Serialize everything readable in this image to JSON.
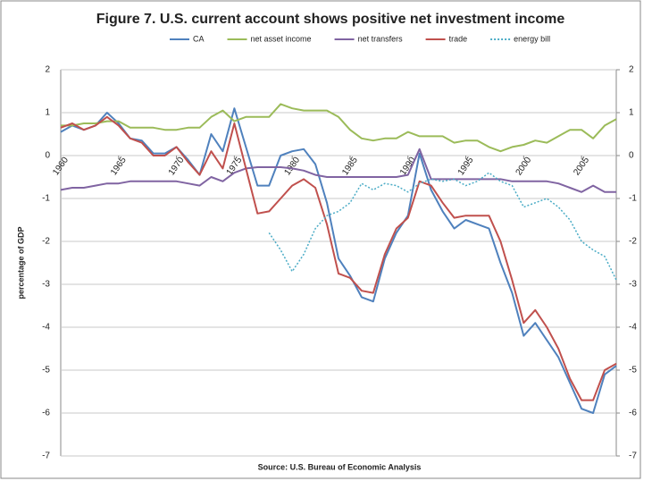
{
  "chart_data": {
    "type": "line",
    "title": "Figure 7. U.S. current account shows positive net investment income",
    "y_label": "percentage of GDP",
    "source": "Source: U.S. Bureau of Economic Analysis",
    "x": [
      1960,
      1961,
      1962,
      1963,
      1964,
      1965,
      1966,
      1967,
      1968,
      1969,
      1970,
      1971,
      1972,
      1973,
      1974,
      1975,
      1976,
      1977,
      1978,
      1979,
      1980,
      1981,
      1982,
      1983,
      1984,
      1985,
      1986,
      1987,
      1988,
      1989,
      1990,
      1991,
      1992,
      1993,
      1994,
      1995,
      1996,
      1997,
      1998,
      1999,
      2000,
      2001,
      2002,
      2003,
      2004,
      2005,
      2006,
      2007,
      2008
    ],
    "xlim": [
      1960,
      2008
    ],
    "xticks": [
      1960,
      1965,
      1970,
      1975,
      1980,
      1985,
      1990,
      1995,
      2000,
      2005
    ],
    "ylim": [
      -7,
      2
    ],
    "yticks": [
      -7,
      -6,
      -5,
      -4,
      -3,
      -2,
      -1,
      0,
      1,
      2
    ],
    "y2lim": [
      -7,
      2
    ],
    "y2ticks": [
      -7,
      -6,
      -5,
      -4,
      -3,
      -2,
      -1,
      0,
      1,
      2
    ],
    "grid": true,
    "legend": "top",
    "series": [
      {
        "name": "CA",
        "color": "#4f81bd",
        "values": [
          0.55,
          0.7,
          0.6,
          0.7,
          1.0,
          0.75,
          0.4,
          0.35,
          0.05,
          0.05,
          0.2,
          -0.1,
          -0.45,
          0.5,
          0.1,
          1.1,
          0.2,
          -0.7,
          -0.7,
          0.0,
          0.1,
          0.15,
          -0.2,
          -1.1,
          -2.4,
          -2.8,
          -3.3,
          -3.4,
          -2.4,
          -1.8,
          -1.4,
          0.05,
          -0.8,
          -1.3,
          -1.7,
          -1.5,
          -1.6,
          -1.7,
          -2.5,
          -3.2,
          -4.2,
          -3.9,
          -4.3,
          -4.7,
          -5.3,
          -5.9,
          -6.0,
          -5.1,
          -4.9
        ]
      },
      {
        "name": "net asset income",
        "color": "#9bbb59",
        "values": [
          0.7,
          0.7,
          0.75,
          0.75,
          0.8,
          0.8,
          0.65,
          0.65,
          0.65,
          0.6,
          0.6,
          0.65,
          0.65,
          0.9,
          1.05,
          0.8,
          0.9,
          0.9,
          0.9,
          1.2,
          1.1,
          1.05,
          1.05,
          1.05,
          0.9,
          0.6,
          0.4,
          0.35,
          0.4,
          0.4,
          0.55,
          0.45,
          0.45,
          0.45,
          0.3,
          0.35,
          0.35,
          0.2,
          0.1,
          0.2,
          0.25,
          0.35,
          0.3,
          0.45,
          0.6,
          0.6,
          0.4,
          0.7,
          0.85
        ]
      },
      {
        "name": "net transfers",
        "color": "#8064a2",
        "values": [
          -0.8,
          -0.75,
          -0.75,
          -0.7,
          -0.65,
          -0.65,
          -0.6,
          -0.6,
          -0.6,
          -0.6,
          -0.6,
          -0.65,
          -0.7,
          -0.5,
          -0.6,
          -0.4,
          -0.3,
          -0.27,
          -0.27,
          -0.27,
          -0.3,
          -0.35,
          -0.45,
          -0.5,
          -0.5,
          -0.5,
          -0.5,
          -0.5,
          -0.5,
          -0.5,
          -0.45,
          0.15,
          -0.55,
          -0.55,
          -0.55,
          -0.55,
          -0.55,
          -0.55,
          -0.55,
          -0.6,
          -0.6,
          -0.6,
          -0.6,
          -0.65,
          -0.75,
          -0.85,
          -0.7,
          -0.85,
          -0.85
        ]
      },
      {
        "name": "trade",
        "color": "#c0504d",
        "values": [
          0.65,
          0.75,
          0.6,
          0.7,
          0.9,
          0.7,
          0.4,
          0.3,
          0.0,
          0.0,
          0.2,
          -0.15,
          -0.45,
          0.1,
          -0.3,
          0.75,
          -0.3,
          -1.35,
          -1.3,
          -1.0,
          -0.7,
          -0.55,
          -0.75,
          -1.6,
          -2.75,
          -2.85,
          -3.15,
          -3.2,
          -2.3,
          -1.7,
          -1.45,
          -0.6,
          -0.7,
          -1.1,
          -1.45,
          -1.4,
          -1.4,
          -1.4,
          -2.0,
          -2.9,
          -3.9,
          -3.6,
          -4.0,
          -4.5,
          -5.2,
          -5.7,
          -5.7,
          -5.0,
          -4.85
        ]
      },
      {
        "name": "energy bill",
        "color": "#4bacc6",
        "dashed": true,
        "values": [
          null,
          null,
          null,
          null,
          null,
          null,
          null,
          null,
          null,
          null,
          null,
          null,
          null,
          null,
          null,
          null,
          null,
          null,
          -1.8,
          -2.2,
          -2.7,
          -2.3,
          -1.7,
          -1.4,
          -1.3,
          -1.1,
          -0.65,
          -0.8,
          -0.65,
          -0.7,
          -0.85,
          -0.65,
          -0.55,
          -0.6,
          -0.55,
          -0.7,
          -0.6,
          -0.4,
          -0.6,
          -0.7,
          -1.2,
          -1.1,
          -1.0,
          -1.2,
          -1.5,
          -2.0,
          -2.2,
          -2.35,
          -2.9
        ]
      }
    ]
  }
}
